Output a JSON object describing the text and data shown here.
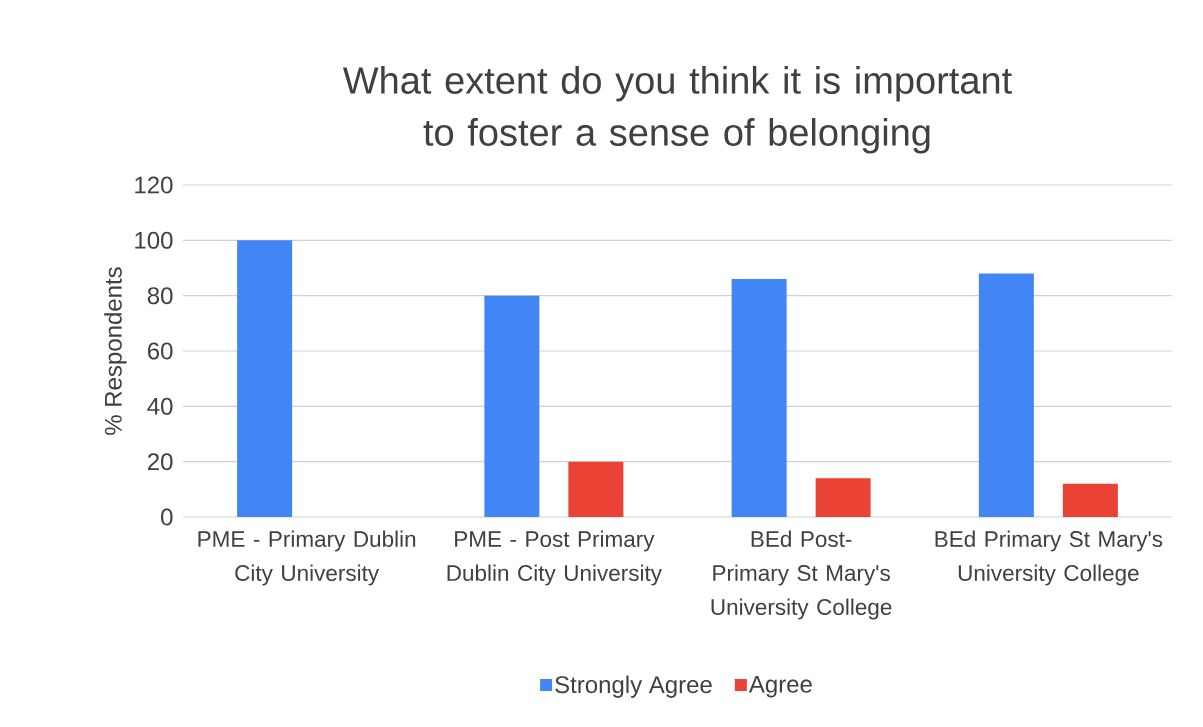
{
  "chart_data": {
    "type": "bar",
    "title": "What extent do you think it is important to foster a sense of belonging",
    "ylabel": "% Respondents",
    "categories": [
      "PME - Primary Dublin City University",
      "PME - Post Primary Dublin City University",
      "BEd Post-Primary St Mary's University College",
      "BEd Primary St Mary's University College"
    ],
    "series": [
      {
        "name": "Strongly Agree",
        "color": "#4285f4",
        "values": [
          100,
          80,
          86,
          88
        ]
      },
      {
        "name": "Agree",
        "color": "#ea4335",
        "values": [
          0,
          20,
          14,
          12
        ]
      }
    ],
    "ylim": [
      0,
      120
    ],
    "yticks": [
      0,
      20,
      40,
      60,
      80,
      100,
      120
    ],
    "grid": "y",
    "legend": "bottom"
  }
}
